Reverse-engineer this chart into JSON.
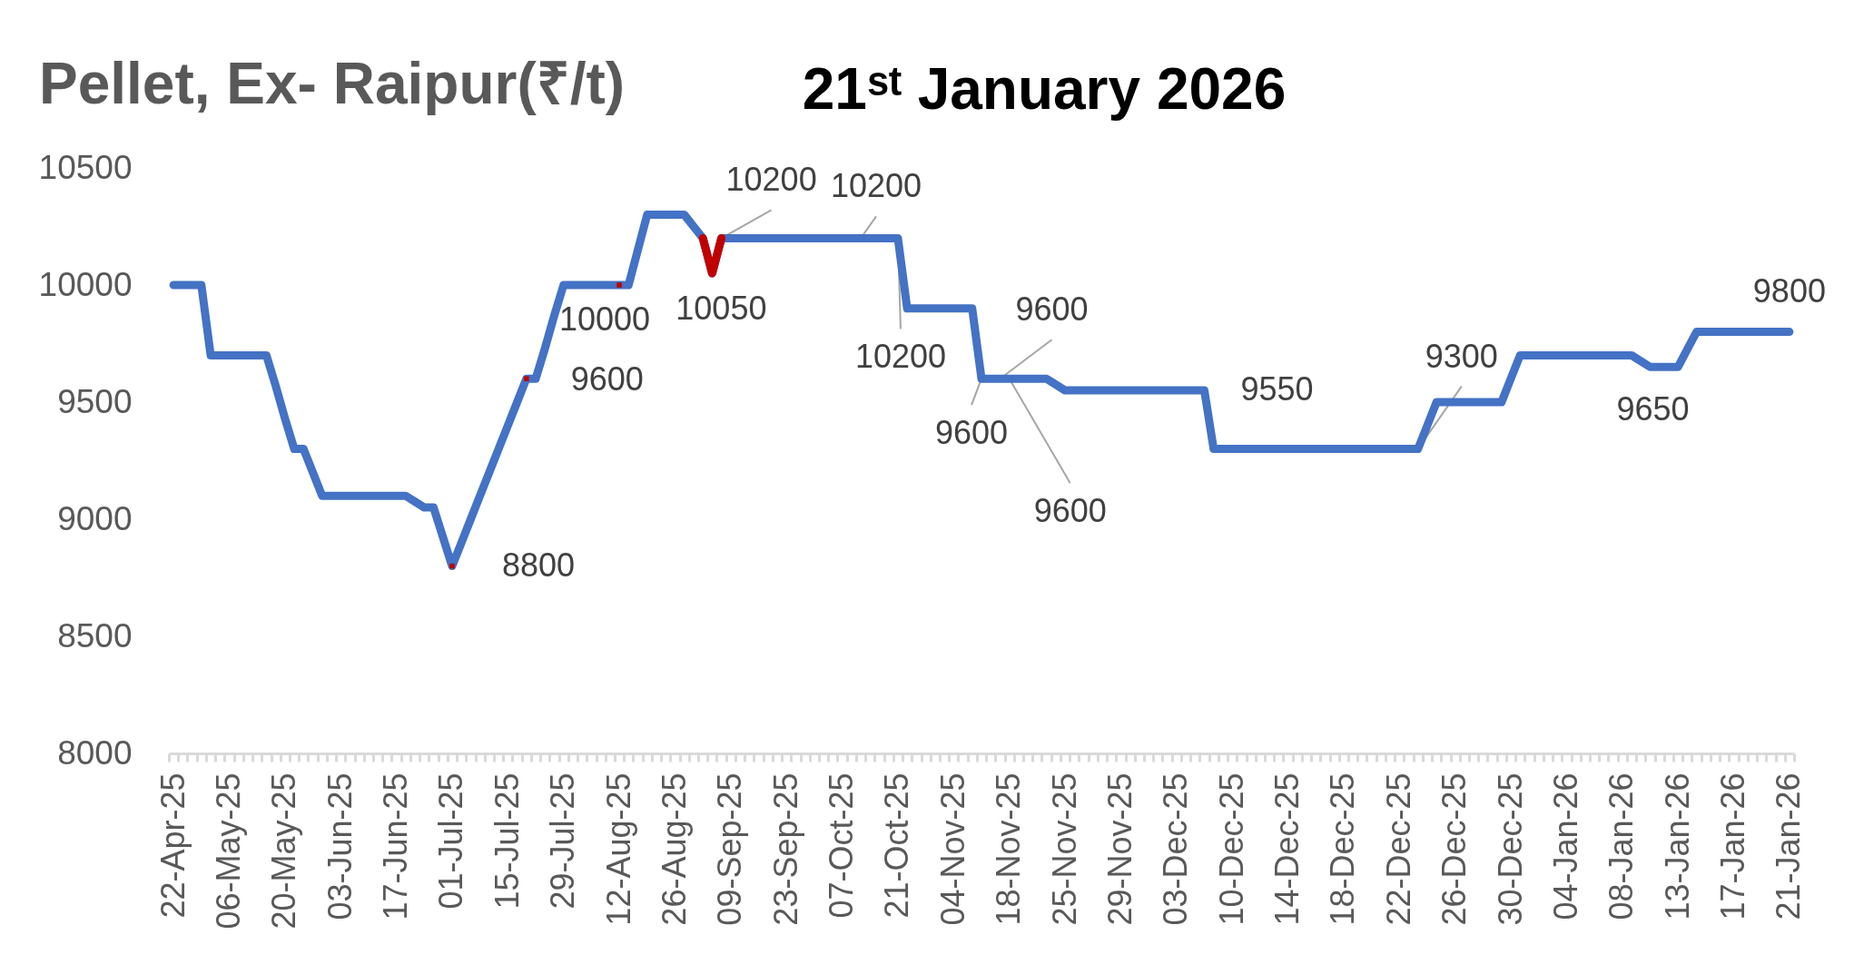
{
  "chart_data": {
    "type": "line",
    "title": "Pellet, Ex- Raipur(₹/t)",
    "subtitle": "21ˢᵗ January 2026",
    "categories": [
      "22-Apr-25",
      null,
      null,
      null,
      null,
      null,
      "06-May-25",
      null,
      null,
      null,
      null,
      null,
      "20-May-25",
      null,
      null,
      null,
      null,
      null,
      "03-Jun-25",
      null,
      null,
      null,
      null,
      null,
      "17-Jun-25",
      null,
      null,
      null,
      null,
      null,
      "01-Jul-25",
      null,
      null,
      null,
      null,
      null,
      "15-Jul-25",
      null,
      null,
      null,
      null,
      null,
      "29-Jul-25",
      null,
      null,
      null,
      null,
      null,
      "12-Aug-25",
      null,
      null,
      null,
      null,
      null,
      "26-Aug-25",
      null,
      null,
      null,
      null,
      null,
      "09-Sep-25",
      null,
      null,
      null,
      null,
      null,
      "23-Sep-25",
      null,
      null,
      null,
      null,
      null,
      "07-Oct-25",
      null,
      null,
      null,
      null,
      null,
      "21-Oct-25",
      null,
      null,
      null,
      null,
      null,
      "04-Nov-25",
      null,
      null,
      null,
      null,
      null,
      "18-Nov-25",
      null,
      null,
      null,
      null,
      null,
      "25-Nov-25",
      null,
      null,
      null,
      null,
      null,
      "29-Nov-25",
      null,
      null,
      null,
      null,
      null,
      "03-Dec-25",
      null,
      null,
      null,
      null,
      null,
      "10-Dec-25",
      null,
      null,
      null,
      null,
      null,
      "14-Dec-25",
      null,
      null,
      null,
      null,
      null,
      "18-Dec-25",
      null,
      null,
      null,
      null,
      null,
      "22-Dec-25",
      null,
      null,
      null,
      null,
      null,
      "26-Dec-25",
      null,
      null,
      null,
      null,
      null,
      "30-Dec-25",
      null,
      null,
      null,
      null,
      null,
      "04-Jan-26",
      null,
      null,
      null,
      null,
      null,
      "08-Jan-26",
      null,
      null,
      null,
      null,
      null,
      "13-Jan-26",
      null,
      null,
      null,
      null,
      null,
      "17-Jan-26",
      null,
      null,
      null,
      null,
      null,
      "21-Jan-26"
    ],
    "series": [
      {
        "color": "#4472c4",
        "values": [
          10000,
          10000,
          10000,
          10000,
          9700,
          9700,
          9700,
          9700,
          9700,
          9700,
          9700,
          9570,
          9430,
          9300,
          9300,
          9200,
          9100,
          9100,
          9100,
          9100,
          9100,
          9100,
          9100,
          9100,
          9100,
          9100,
          9075,
          9050,
          9050,
          8925,
          8800,
          8900,
          9000,
          9100,
          9200,
          9300,
          9400,
          9500,
          9600,
          9600,
          9730,
          9870,
          10000,
          10000,
          10000,
          10000,
          10000,
          10000,
          10000,
          10000,
          10150,
          10300,
          10300,
          10300,
          10300,
          10300,
          10250,
          10200,
          10050,
          10200,
          10200,
          10200,
          10200,
          10200,
          10200,
          10200,
          10200,
          10200,
          10200,
          10200,
          10200,
          10200,
          10200,
          10200,
          10200,
          10200,
          10200,
          10200,
          10200,
          9900,
          9900,
          9900,
          9900,
          9900,
          9900,
          9900,
          9900,
          9600,
          9600,
          9600,
          9600,
          9600,
          9600,
          9600,
          9600,
          9575,
          9550,
          9550,
          9550,
          9550,
          9550,
          9550,
          9550,
          9550,
          9550,
          9550,
          9550,
          9550,
          9550,
          9550,
          9550,
          9550,
          9300,
          9300,
          9300,
          9300,
          9300,
          9300,
          9300,
          9300,
          9300,
          9300,
          9300,
          9300,
          9300,
          9300,
          9300,
          9300,
          9300,
          9300,
          9300,
          9300,
          9300,
          9300,
          9300,
          9400,
          9500,
          9500,
          9500,
          9500,
          9500,
          9500,
          9500,
          9500,
          9600,
          9700,
          9700,
          9700,
          9700,
          9700,
          9700,
          9700,
          9700,
          9700,
          9700,
          9700,
          9700,
          9700,
          9675,
          9650,
          9650,
          9650,
          9650,
          9725,
          9800,
          9800,
          9800,
          9800,
          9800,
          9800,
          9800,
          9800,
          9800,
          9800,
          9800
        ],
        "value_labels": [
          null,
          null,
          null,
          null,
          null,
          null,
          null,
          null,
          null,
          null,
          null,
          null,
          null,
          null,
          null,
          null,
          null,
          null,
          null,
          null,
          null,
          null,
          null,
          null,
          null,
          null,
          null,
          null,
          null,
          null,
          "8800",
          null,
          null,
          null,
          null,
          null,
          null,
          null,
          "9600",
          null,
          null,
          null,
          null,
          null,
          null,
          null,
          null,
          null,
          "10000",
          null,
          null,
          null,
          null,
          null,
          null,
          null,
          null,
          null,
          "10050",
          "10200",
          null,
          null,
          null,
          null,
          null,
          null,
          null,
          null,
          null,
          null,
          null,
          null,
          null,
          null,
          "10200",
          null,
          null,
          null,
          "10200",
          null,
          null,
          null,
          null,
          null,
          null,
          null,
          null,
          "9600",
          null,
          "9600",
          "9600",
          null,
          null,
          null,
          null,
          null,
          null,
          null,
          null,
          null,
          null,
          null,
          null,
          null,
          null,
          null,
          null,
          null,
          null,
          null,
          null,
          "9550",
          null,
          null,
          null,
          null,
          null,
          null,
          null,
          null,
          null,
          null,
          null,
          null,
          null,
          null,
          null,
          null,
          null,
          null,
          null,
          null,
          null,
          null,
          "9300",
          null,
          null,
          null,
          null,
          null,
          null,
          null,
          null,
          null,
          null,
          null,
          null,
          null,
          null,
          null,
          null,
          null,
          null,
          null,
          null,
          null,
          null,
          null,
          null,
          "9650",
          null,
          null,
          null,
          null,
          null,
          null,
          null,
          null,
          null,
          null,
          null,
          null,
          null,
          null,
          "9800"
        ]
      },
      {
        "color": "#c00000",
        "values": [
          null,
          null,
          null,
          null,
          null,
          null,
          null,
          null,
          null,
          null,
          null,
          null,
          null,
          null,
          null,
          null,
          null,
          null,
          null,
          null,
          null,
          null,
          null,
          null,
          null,
          null,
          null,
          null,
          null,
          null,
          null,
          null,
          null,
          null,
          null,
          null,
          null,
          null,
          null,
          null,
          null,
          null,
          null,
          null,
          null,
          null,
          null,
          null,
          null,
          null,
          null,
          null,
          null,
          null,
          null,
          null,
          null,
          10200,
          10050,
          10200,
          null,
          null,
          null,
          null,
          null,
          null,
          null,
          null,
          null,
          null,
          null,
          null,
          null,
          null,
          null,
          null,
          null,
          null,
          null,
          null,
          null,
          null,
          null,
          null,
          null,
          null,
          null,
          null,
          null,
          null,
          null,
          null,
          null,
          null,
          null,
          null,
          null,
          null,
          null,
          null,
          null,
          null,
          null,
          null,
          null,
          null,
          null,
          null,
          null,
          null,
          null,
          null,
          null,
          null,
          null,
          null,
          null,
          null,
          null,
          null,
          null,
          null,
          null,
          null,
          null,
          null,
          null,
          null,
          null,
          null,
          null,
          null,
          null,
          null,
          null,
          null,
          null,
          null,
          null,
          null,
          null,
          null,
          null,
          null,
          null,
          null,
          null,
          null,
          null,
          null,
          null,
          null,
          null,
          null,
          null,
          null,
          null,
          null,
          null,
          null,
          null,
          null,
          null,
          null,
          null,
          null,
          null,
          null,
          null,
          null,
          null,
          null,
          null,
          null,
          null
        ]
      },
      {
        "type": "scatter",
        "marker": "square",
        "color": "#c00000",
        "values": [
          null,
          null,
          null,
          null,
          null,
          null,
          null,
          null,
          null,
          null,
          null,
          null,
          null,
          null,
          null,
          null,
          null,
          null,
          null,
          null,
          null,
          null,
          null,
          null,
          null,
          null,
          null,
          null,
          null,
          null,
          8800,
          null,
          null,
          null,
          null,
          null,
          null,
          null,
          9600,
          null,
          null,
          null,
          null,
          null,
          null,
          null,
          null,
          null,
          10000,
          null,
          null,
          null,
          null,
          null,
          null,
          null,
          null,
          null,
          null,
          null,
          null,
          null,
          null,
          null,
          null,
          null,
          null,
          null,
          null,
          null,
          null,
          null,
          null,
          null,
          null,
          null,
          null,
          null,
          null,
          null,
          null,
          null,
          null,
          null,
          null,
          null,
          null,
          null,
          null,
          null,
          null,
          null,
          null,
          null,
          null,
          null,
          null,
          null,
          null,
          null,
          null,
          null,
          null,
          null,
          null,
          null,
          null,
          null,
          null,
          null,
          null,
          null,
          null,
          null,
          null,
          null,
          null,
          null,
          null,
          null,
          null,
          null,
          null,
          null,
          null,
          null,
          null,
          null,
          null,
          null,
          null,
          null,
          null,
          null,
          null,
          null,
          null,
          null,
          null,
          null,
          null,
          null,
          null,
          null,
          null,
          null,
          null,
          null,
          null,
          null,
          null,
          null,
          null,
          null,
          null,
          null,
          null,
          null,
          null,
          null,
          null,
          null,
          null,
          null,
          null,
          null,
          null,
          null,
          null,
          null,
          null,
          null,
          null,
          null,
          null
        ]
      }
    ],
    "ylim": [
      8000,
      10500
    ],
    "yticks": [
      8000,
      8500,
      9000,
      9500,
      10000,
      10500
    ],
    "grid": false
  }
}
